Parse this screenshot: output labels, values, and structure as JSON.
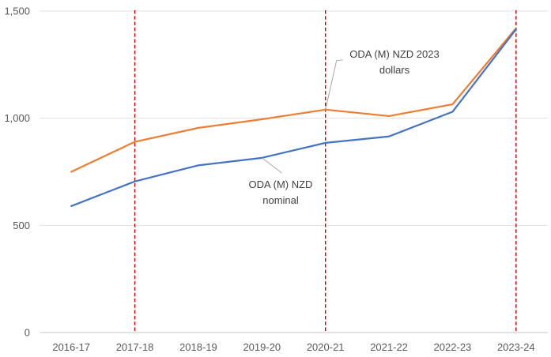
{
  "chart_data": {
    "type": "line",
    "title": "",
    "categories": [
      "2016-17",
      "2017-18",
      "2018-19",
      "2019-20",
      "2020-21",
      "2021-22",
      "2022-23",
      "2023-24"
    ],
    "series": [
      {
        "id": "2023-dollars",
        "name": "ODA (M) NZD 2023 dollars",
        "color": "#ED7D31",
        "values": [
          750,
          890,
          955,
          995,
          1040,
          1010,
          1065,
          1420
        ]
      },
      {
        "id": "nominal",
        "name": "ODA (M) NZD nominal",
        "color": "#4472C4",
        "values": [
          590,
          705,
          780,
          815,
          885,
          915,
          1030,
          1415
        ]
      }
    ],
    "ylim": [
      0,
      1500
    ],
    "yticks": [
      {
        "value": 0,
        "label": "0"
      },
      {
        "value": 500,
        "label": "500"
      },
      {
        "value": 1000,
        "label": "1,000"
      },
      {
        "value": 1500,
        "label": "1,500"
      }
    ],
    "grid": true,
    "legend_position": "none",
    "marker_lines": {
      "color": "#C00000",
      "style": "dashed",
      "at_categories": [
        "2017-18",
        "2020-21",
        "2023-24"
      ]
    },
    "annotations": [
      {
        "lines": [
          "ODA (M) NZD 2023",
          "dollars"
        ],
        "series": 0,
        "point": 4,
        "label_x": 499,
        "label_y": 73,
        "line_height": 20,
        "leader_rel": [
          [
            14,
            -62
          ],
          [
            22,
            -63
          ]
        ]
      },
      {
        "lines": [
          "ODA (M) NZD",
          "nominal"
        ],
        "series": 1,
        "point": 3,
        "label_x": 355,
        "label_y": 238,
        "line_height": 20,
        "leader_rel": [
          [
            25,
            19
          ]
        ]
      }
    ]
  },
  "colors": {
    "background": "#FFFFFF",
    "grid": "#E0E0E0",
    "axis_line": "#C9C9C9",
    "tick_label": "#595959",
    "annotation_text": "#404040",
    "leader": "#A6A6A6"
  }
}
